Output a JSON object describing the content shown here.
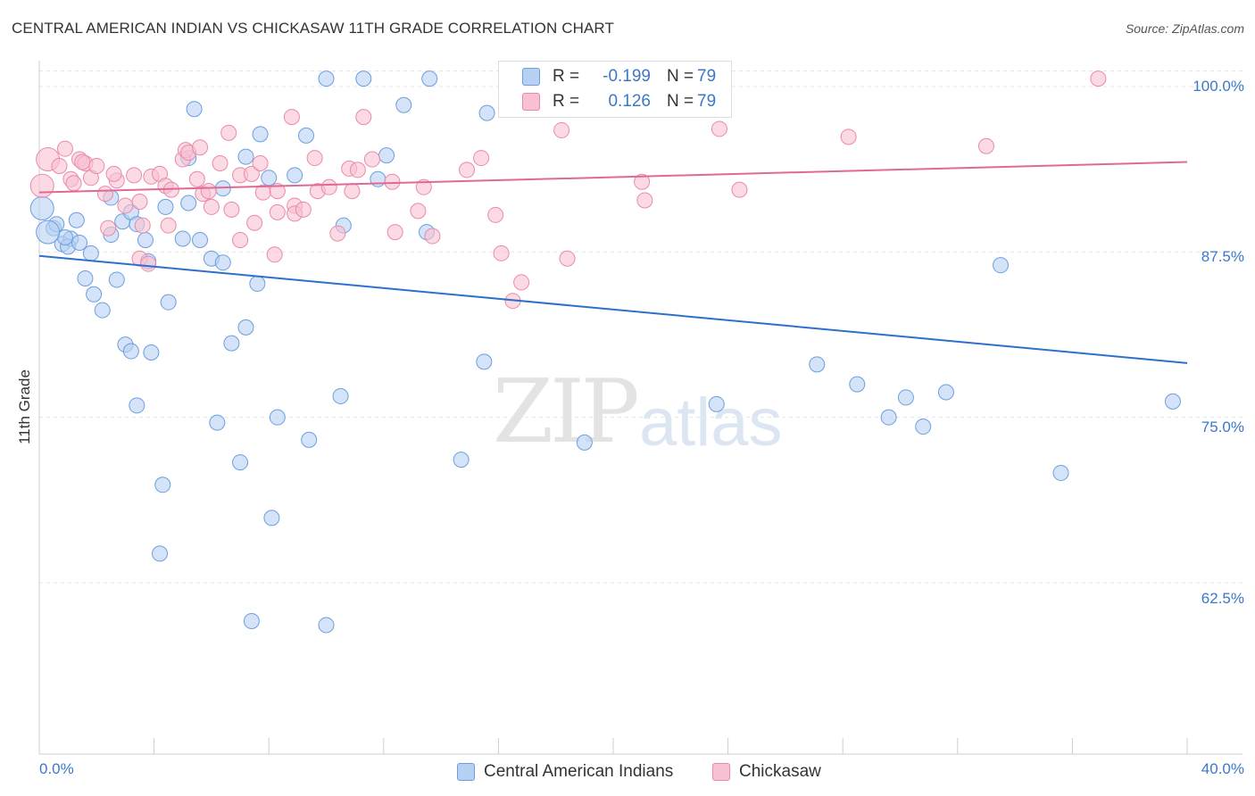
{
  "header": {
    "title": "CENTRAL AMERICAN INDIAN VS CHICKASAW 11TH GRADE CORRELATION CHART",
    "source": "Source: ZipAtlas.com"
  },
  "watermark": {
    "zip": "ZIP",
    "atlas": "atlas"
  },
  "legend": {
    "rows": [
      {
        "r_label": "R =",
        "r_value": "-0.199",
        "n_label": "N =",
        "n_value": "79"
      },
      {
        "r_label": "R =",
        "r_value": "0.126",
        "n_label": "N =",
        "n_value": "79"
      }
    ]
  },
  "bottom_legend": {
    "series_a": "Central American Indians",
    "series_b": "Chickasaw"
  },
  "axes": {
    "ylabel": "11th Grade",
    "yticks": [
      "100.0%",
      "87.5%",
      "75.0%",
      "62.5%"
    ],
    "xtick_left": "0.0%",
    "xtick_right": "40.0%"
  },
  "colors": {
    "blue_fill": "#b7d0f1",
    "blue_stroke": "#6b9fdf",
    "blue_line": "#2d6fcf",
    "pink_fill": "#f8c1d2",
    "pink_stroke": "#e98aa9",
    "pink_line": "#e06897",
    "tick_text": "#3a78c9"
  },
  "chart_data": {
    "type": "scatter",
    "xlabel": "",
    "ylabel": "11th Grade",
    "xlim": [
      0,
      40
    ],
    "ylim": [
      50,
      100.5
    ],
    "yticks": [
      62.5,
      75.0,
      87.5,
      100.0
    ],
    "grid": true,
    "series": [
      {
        "name": "Central American Indians",
        "r": -0.199,
        "n": 79,
        "trend": {
          "x0": 0,
          "y0": 87.2,
          "x1": 40,
          "y1": 79.1
        },
        "points": [
          [
            0.1,
            90.8
          ],
          [
            0.5,
            89.3
          ],
          [
            0.6,
            89.6
          ],
          [
            0.8,
            88.1
          ],
          [
            1.1,
            88.5
          ],
          [
            1.0,
            87.9
          ],
          [
            1.3,
            89.9
          ],
          [
            1.8,
            87.4
          ],
          [
            0.9,
            88.6
          ],
          [
            1.6,
            85.5
          ],
          [
            1.9,
            84.3
          ],
          [
            2.2,
            83.1
          ],
          [
            2.5,
            91.6
          ],
          [
            2.9,
            89.8
          ],
          [
            3.2,
            90.5
          ],
          [
            2.5,
            88.8
          ],
          [
            3.4,
            89.6
          ],
          [
            3.7,
            88.4
          ],
          [
            3.8,
            86.8
          ],
          [
            4.4,
            90.9
          ],
          [
            4.5,
            83.7
          ],
          [
            3.0,
            80.5
          ],
          [
            3.2,
            80.0
          ],
          [
            3.9,
            79.9
          ],
          [
            3.4,
            75.9
          ],
          [
            4.3,
            69.9
          ],
          [
            4.2,
            64.7
          ],
          [
            5.0,
            88.5
          ],
          [
            5.6,
            88.4
          ],
          [
            5.2,
            91.2
          ],
          [
            5.2,
            94.6
          ],
          [
            5.4,
            98.3
          ],
          [
            6.0,
            87.0
          ],
          [
            6.4,
            86.7
          ],
          [
            6.4,
            92.3
          ],
          [
            6.2,
            74.6
          ],
          [
            6.7,
            80.6
          ],
          [
            7.0,
            71.6
          ],
          [
            7.2,
            81.8
          ],
          [
            7.2,
            94.7
          ],
          [
            7.6,
            85.1
          ],
          [
            7.7,
            96.4
          ],
          [
            8.0,
            93.1
          ],
          [
            8.1,
            67.4
          ],
          [
            8.3,
            75.0
          ],
          [
            7.4,
            59.6
          ],
          [
            8.9,
            93.3
          ],
          [
            9.3,
            96.3
          ],
          [
            9.4,
            73.3
          ],
          [
            10.0,
            100.6
          ],
          [
            10.0,
            59.3
          ],
          [
            10.5,
            76.6
          ],
          [
            10.6,
            89.5
          ],
          [
            11.3,
            100.6
          ],
          [
            11.8,
            93.0
          ],
          [
            12.1,
            94.8
          ],
          [
            12.7,
            98.6
          ],
          [
            13.5,
            89.0
          ],
          [
            13.6,
            100.6
          ],
          [
            14.7,
            71.8
          ],
          [
            15.5,
            79.2
          ],
          [
            15.6,
            98.0
          ],
          [
            18.7,
            100.6
          ],
          [
            19.0,
            73.1
          ],
          [
            22.0,
            100.5
          ],
          [
            23.1,
            100.6
          ],
          [
            23.6,
            76.0
          ],
          [
            27.1,
            79.0
          ],
          [
            28.5,
            77.5
          ],
          [
            29.6,
            75.0
          ],
          [
            30.2,
            76.5
          ],
          [
            30.8,
            74.3
          ],
          [
            31.6,
            76.9
          ],
          [
            33.5,
            86.5
          ],
          [
            35.6,
            70.8
          ],
          [
            39.5,
            76.2
          ],
          [
            1.4,
            88.2
          ],
          [
            0.3,
            89.0
          ],
          [
            2.7,
            85.4
          ]
        ]
      },
      {
        "name": "Chickasaw",
        "r": 0.126,
        "n": 79,
        "trend": {
          "x0": 0,
          "y0": 92.0,
          "x1": 40,
          "y1": 94.3
        },
        "points": [
          [
            0.1,
            92.5
          ],
          [
            0.3,
            94.5
          ],
          [
            0.7,
            94.0
          ],
          [
            0.9,
            95.3
          ],
          [
            1.1,
            93.0
          ],
          [
            1.4,
            94.5
          ],
          [
            1.6,
            94.2
          ],
          [
            1.8,
            93.1
          ],
          [
            1.5,
            94.3
          ],
          [
            2.0,
            94.0
          ],
          [
            2.3,
            91.9
          ],
          [
            2.4,
            89.3
          ],
          [
            2.7,
            92.9
          ],
          [
            2.6,
            93.4
          ],
          [
            3.0,
            91.0
          ],
          [
            3.3,
            93.3
          ],
          [
            3.5,
            91.3
          ],
          [
            3.5,
            87.0
          ],
          [
            3.6,
            89.5
          ],
          [
            3.8,
            86.6
          ],
          [
            3.9,
            93.2
          ],
          [
            4.2,
            93.4
          ],
          [
            4.4,
            92.5
          ],
          [
            4.5,
            89.5
          ],
          [
            4.6,
            92.2
          ],
          [
            5.0,
            94.5
          ],
          [
            5.1,
            95.2
          ],
          [
            5.2,
            95.0
          ],
          [
            5.5,
            93.0
          ],
          [
            5.6,
            95.4
          ],
          [
            5.7,
            91.9
          ],
          [
            5.9,
            92.1
          ],
          [
            6.0,
            90.9
          ],
          [
            6.3,
            94.2
          ],
          [
            6.6,
            96.5
          ],
          [
            6.7,
            90.7
          ],
          [
            7.0,
            93.3
          ],
          [
            7.0,
            88.4
          ],
          [
            7.4,
            93.4
          ],
          [
            7.5,
            89.7
          ],
          [
            7.7,
            94.2
          ],
          [
            7.8,
            92.0
          ],
          [
            8.3,
            90.5
          ],
          [
            8.3,
            92.1
          ],
          [
            8.2,
            87.3
          ],
          [
            8.8,
            97.7
          ],
          [
            8.9,
            91.0
          ],
          [
            8.9,
            90.4
          ],
          [
            9.2,
            90.7
          ],
          [
            9.7,
            92.1
          ],
          [
            9.6,
            94.6
          ],
          [
            10.1,
            92.4
          ],
          [
            10.4,
            88.9
          ],
          [
            10.8,
            93.8
          ],
          [
            10.9,
            92.1
          ],
          [
            11.1,
            93.7
          ],
          [
            11.3,
            97.7
          ],
          [
            11.6,
            94.5
          ],
          [
            12.4,
            89.0
          ],
          [
            12.3,
            92.8
          ],
          [
            13.2,
            90.6
          ],
          [
            13.4,
            92.4
          ],
          [
            13.7,
            88.7
          ],
          [
            14.9,
            93.7
          ],
          [
            15.4,
            94.6
          ],
          [
            15.9,
            90.3
          ],
          [
            16.1,
            87.4
          ],
          [
            16.8,
            85.2
          ],
          [
            16.5,
            83.8
          ],
          [
            18.4,
            87.0
          ],
          [
            18.2,
            96.7
          ],
          [
            21.0,
            92.8
          ],
          [
            21.1,
            91.4
          ],
          [
            23.7,
            96.8
          ],
          [
            24.4,
            92.2
          ],
          [
            28.2,
            96.2
          ],
          [
            33.0,
            95.5
          ],
          [
            36.9,
            100.6
          ],
          [
            1.2,
            92.7
          ]
        ]
      }
    ]
  }
}
